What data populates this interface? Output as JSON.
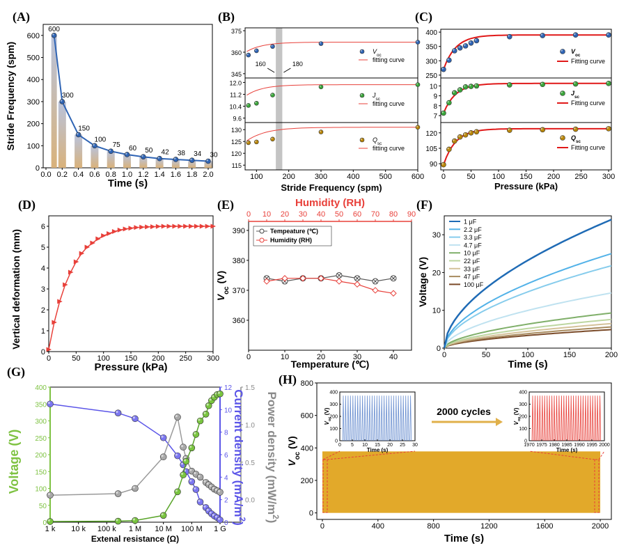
{
  "colors": {
    "red": "#e8403a",
    "blue": "#2f64b4",
    "green": "#7ec242",
    "gray": "#8a8a8a",
    "purple": "#5b55e8",
    "gold": "#e2a92a",
    "bar_top": "#b9c3dc",
    "bar_bot": "#d9b27b",
    "gray_band": "#c4c4c4"
  },
  "panels": [
    "(A)",
    "(B)",
    "(C)",
    "(D)",
    "(E)",
    "(F)",
    "(G)",
    "(H)"
  ],
  "chart_data": [
    {
      "id": "A",
      "type": "bar+line",
      "xlabel": "Time (s)",
      "ylabel": "Stride Frequency (spm)",
      "x": [
        0.1,
        0.2,
        0.4,
        0.6,
        0.8,
        1.0,
        1.2,
        1.4,
        1.6,
        1.8,
        2.0
      ],
      "values": [
        600,
        300,
        150,
        100,
        75,
        60,
        50,
        42,
        38,
        34,
        30
      ],
      "labels": [
        "600",
        "300",
        "150",
        "100",
        "75",
        "60",
        "50",
        "42",
        "38",
        "34",
        "30"
      ],
      "xlim": [
        0,
        2.0
      ],
      "ylim": [
        0,
        650
      ],
      "xticks": [
        "0.0",
        "0.2",
        "0.4",
        "0.6",
        "0.8",
        "1.0",
        "1.2",
        "1.4",
        "1.6",
        "1.8",
        "2.0"
      ],
      "yticks": [
        "0",
        "100",
        "200",
        "300",
        "400",
        "500",
        "600"
      ]
    },
    {
      "id": "B",
      "type": "scatter+line",
      "xlabel": "Stride Frequency (spm)",
      "xlim": [
        0,
        600
      ],
      "xticks": [
        "100",
        "200",
        "300",
        "400",
        "500",
        "600"
      ],
      "band_label_left": "160",
      "band_label_right": "180",
      "subplots": [
        {
          "legend": "V",
          "legend_sub": "oc",
          "fit_label": "fitting curve",
          "ylim": [
            342,
            377
          ],
          "yticks": [
            "345",
            "360",
            "375"
          ],
          "x": [
            15,
            30,
            40,
            50,
            60,
            75,
            100,
            150,
            300,
            600
          ],
          "y": [
            345.5,
            347,
            349,
            351,
            353,
            358,
            361,
            364,
            366,
            367
          ]
        },
        {
          "legend": "J",
          "legend_sub": "sc",
          "fit_label": "fitting curve",
          "ylim": [
            9.3,
            12.3
          ],
          "yticks": [
            "9.6",
            "10.4",
            "11.2",
            "12.0"
          ],
          "x": [
            15,
            30,
            40,
            50,
            60,
            75,
            100,
            150,
            300,
            600
          ],
          "y": [
            9.5,
            9.85,
            10.05,
            10.2,
            10.3,
            10.45,
            10.6,
            11.15,
            11.7,
            11.85
          ]
        },
        {
          "legend": "Q",
          "legend_sub": "sc",
          "fit_label": "fitting curve",
          "ylim": [
            113,
            133
          ],
          "yticks": [
            "115",
            "120",
            "125",
            "130"
          ],
          "x": [
            15,
            30,
            40,
            50,
            60,
            75,
            100,
            150,
            300,
            600
          ],
          "y": [
            115.5,
            118,
            120,
            122,
            124,
            124.5,
            124.8,
            126,
            129,
            131
          ]
        }
      ]
    },
    {
      "id": "C",
      "type": "scatter+line",
      "xlabel": "Pressure (kPa)",
      "xlim": [
        -5,
        305
      ],
      "xticks": [
        "0",
        "50",
        "100",
        "150",
        "200",
        "250",
        "300"
      ],
      "subplots": [
        {
          "legend": "V",
          "legend_sub": "oc",
          "fit_label": "Fitting curve",
          "ylim": [
            240,
            410
          ],
          "yticks": [
            "250",
            "300",
            "350",
            "400"
          ],
          "x": [
            0,
            10,
            20,
            30,
            40,
            50,
            60,
            120,
            180,
            240,
            300
          ],
          "y": [
            270,
            302,
            335,
            345,
            352,
            362,
            370,
            384,
            388,
            390,
            390
          ]
        },
        {
          "legend": "J",
          "legend_sub": "sc",
          "fit_label": "Fitting curve",
          "ylim": [
            6.3,
            10.8
          ],
          "yticks": [
            "7",
            "8",
            "9",
            "10"
          ],
          "x": [
            0,
            10,
            20,
            30,
            40,
            50,
            60,
            120,
            180,
            240,
            300
          ],
          "y": [
            7.25,
            8.3,
            9.3,
            9.6,
            9.9,
            9.95,
            10.0,
            10.1,
            10.15,
            10.2,
            10.25
          ]
        },
        {
          "legend": "Q",
          "legend_sub": "sc",
          "fit_label": "Fitting curve",
          "ylim": [
            84,
            130
          ],
          "yticks": [
            "90",
            "105",
            "120"
          ],
          "x": [
            0,
            10,
            20,
            30,
            40,
            50,
            60,
            120,
            180,
            240,
            300
          ],
          "y": [
            89,
            104,
            112,
            116,
            118,
            120,
            121,
            122.5,
            123,
            123.5,
            124
          ]
        }
      ]
    },
    {
      "id": "D",
      "type": "line",
      "xlabel": "Pressure (kPa)",
      "ylabel": "Vertical deformation (mm)",
      "xlim": [
        0,
        300
      ],
      "ylim": [
        0,
        6.5
      ],
      "xticks": [
        "0",
        "50",
        "100",
        "150",
        "200",
        "250",
        "300"
      ],
      "yticks": [
        "0",
        "1",
        "2",
        "3",
        "4",
        "5",
        "6"
      ],
      "x": [
        0,
        10,
        20,
        30,
        40,
        50,
        60,
        70,
        80,
        90,
        100,
        110,
        120,
        130,
        140,
        150,
        160,
        170,
        180,
        190,
        200,
        210,
        220,
        230,
        240,
        250,
        260,
        270,
        280,
        290,
        300
      ],
      "y": [
        0.1,
        1.4,
        2.4,
        3.2,
        3.8,
        4.3,
        4.7,
        5.0,
        5.2,
        5.4,
        5.55,
        5.65,
        5.75,
        5.82,
        5.87,
        5.91,
        5.94,
        5.96,
        5.97,
        5.98,
        5.99,
        6.0,
        6.0,
        6.0,
        6.0,
        6.0,
        6.0,
        6.0,
        6.0,
        6.0,
        6.0
      ]
    },
    {
      "id": "E",
      "type": "line",
      "xlabel": "Temperature (℃)",
      "x2label": "Humidity (RH)",
      "ylabel": "V",
      "ylabel_sub": "oc",
      "ylabel_unit": " (V)",
      "xlim": [
        0,
        45
      ],
      "x2lim": [
        0,
        90
      ],
      "ylim": [
        350,
        393
      ],
      "xticks": [
        "0",
        "10",
        "20",
        "30",
        "40"
      ],
      "x2ticks": [
        "0",
        "10",
        "20",
        "30",
        "40",
        "50",
        "60",
        "70",
        "80",
        "90"
      ],
      "yticks": [
        "360",
        "370",
        "380",
        "390"
      ],
      "series": [
        {
          "name": "Tempeature (℃)",
          "x": [
            5,
            10,
            15,
            20,
            25,
            30,
            35,
            40
          ],
          "values": [
            374,
            373,
            374,
            374,
            375,
            374,
            373,
            374
          ]
        },
        {
          "name": "Humidity (RH)",
          "x2": [
            10,
            20,
            30,
            40,
            50,
            60,
            70,
            80
          ],
          "values": [
            373,
            374,
            374,
            374,
            373,
            372,
            370,
            369
          ]
        }
      ]
    },
    {
      "id": "F",
      "type": "line",
      "xlabel": "Time (s)",
      "ylabel": "Voltage (V)",
      "xlim": [
        0,
        200
      ],
      "ylim": [
        0,
        35
      ],
      "xticks": [
        "0",
        "50",
        "100",
        "150",
        "200"
      ],
      "yticks": [
        "0",
        "10",
        "20",
        "30"
      ],
      "series": [
        {
          "name": "1 μF",
          "final": 34,
          "color": "#1f6bb5"
        },
        {
          "name": "2.2 μF",
          "final": 25,
          "color": "#52b2e8"
        },
        {
          "name": "3.3 μF",
          "final": 21.8,
          "color": "#86ccec"
        },
        {
          "name": "4.7 μF",
          "final": 14.6,
          "color": "#bfe2f0"
        },
        {
          "name": "10 μF",
          "final": 9.3,
          "color": "#7faf69"
        },
        {
          "name": "22 μF",
          "final": 7.6,
          "color": "#bdd6a0"
        },
        {
          "name": "33 μF",
          "final": 6.5,
          "color": "#d4c29a"
        },
        {
          "name": "47 μF",
          "final": 5.6,
          "color": "#a88b5f"
        },
        {
          "name": "100 μF",
          "final": 4.9,
          "color": "#7a4a28"
        }
      ]
    },
    {
      "id": "G",
      "type": "line",
      "xlabel": "Extenal resistance (Ω)",
      "xticks": [
        "1 k",
        "10 k",
        "100 k",
        "1 M",
        "10 M",
        "100 M",
        "1 G"
      ],
      "y1label": "Voltage (V)",
      "y1lim": [
        0,
        400
      ],
      "y1ticks": [
        "0",
        "50",
        "100",
        "150",
        "200",
        "250",
        "300",
        "350",
        "400"
      ],
      "y2label": "Current density (mA/m",
      "y2label_sup": "2",
      "y2label_end": ")",
      "y2lim": [
        0,
        12
      ],
      "y2ticks": [
        "0",
        "2",
        "4",
        "6",
        "8",
        "10",
        "12"
      ],
      "y3label": "Power density (mW/m",
      "y3label_sup": "2",
      "y3label_end": ")",
      "y3lim": [
        -0.3,
        1.5
      ],
      "y3ticks": [
        "0.0",
        "0.5",
        "1.0",
        "1.5"
      ],
      "log_r": [
        3,
        3.2,
        4.7,
        5.4,
        6,
        7,
        7.5,
        7.7,
        7.8,
        8,
        8.15,
        8.3,
        8.5,
        8.6,
        8.7,
        8.8,
        8.9,
        9
      ],
      "voltage": [
        2,
        2,
        2,
        3,
        5,
        20,
        90,
        140,
        180,
        220,
        260,
        300,
        320,
        345,
        360,
        370,
        378,
        380
      ],
      "current": [
        10.5,
        10.4,
        10.3,
        9.7,
        9.2,
        7.5,
        5.9,
        5.1,
        4.5,
        3.6,
        2.9,
        1.8,
        1.3,
        1.0,
        0.75,
        0.55,
        0.4,
        0.2
      ],
      "power": [
        0.06,
        0.06,
        0.06,
        0.08,
        0.15,
        0.57,
        1.1,
        0.7,
        0.55,
        0.38,
        0.34,
        0.3,
        0.23,
        0.2,
        0.17,
        0.14,
        0.12,
        0.1
      ],
      "visible_idx": [
        0,
        3,
        4,
        5,
        6,
        7,
        8,
        9,
        10,
        11,
        12,
        13,
        14,
        15,
        16,
        17
      ]
    },
    {
      "id": "H",
      "type": "area",
      "xlabel": "Time (s)",
      "ylabel": "V",
      "ylabel_sub": "oc",
      "ylabel_unit": " (V)",
      "xlim": [
        0,
        2000
      ],
      "ylim": [
        0,
        800
      ],
      "xticks": [
        "0",
        "400",
        "800",
        "1200",
        "1600",
        "2000"
      ],
      "yticks": [
        "0",
        "200",
        "400",
        "600",
        "800"
      ],
      "band_value": 370,
      "cycles_label": "2000 cycles",
      "inset_left": {
        "xlabel": "Time (s)",
        "ylabel": "V",
        "ylabel_sub": "oc",
        "ylabel_unit": " (V)",
        "xlim": [
          0,
          30
        ],
        "ylim": [
          0,
          400
        ],
        "xticks": [
          "0",
          "5",
          "10",
          "15",
          "20",
          "25",
          "30"
        ],
        "yticks": [
          "0",
          "100",
          "200",
          "300",
          "400"
        ]
      },
      "inset_right": {
        "xlabel": "Time (s)",
        "ylabel": "V",
        "ylabel_sub": "oc",
        "ylabel_unit": " (V)",
        "xlim": [
          1970,
          2000
        ],
        "ylim": [
          0,
          400
        ],
        "xticks": [
          "1970",
          "1975",
          "1980",
          "1985",
          "1990",
          "1995",
          "2000"
        ],
        "yticks": [
          "0",
          "100",
          "200",
          "300",
          "400"
        ]
      }
    }
  ]
}
